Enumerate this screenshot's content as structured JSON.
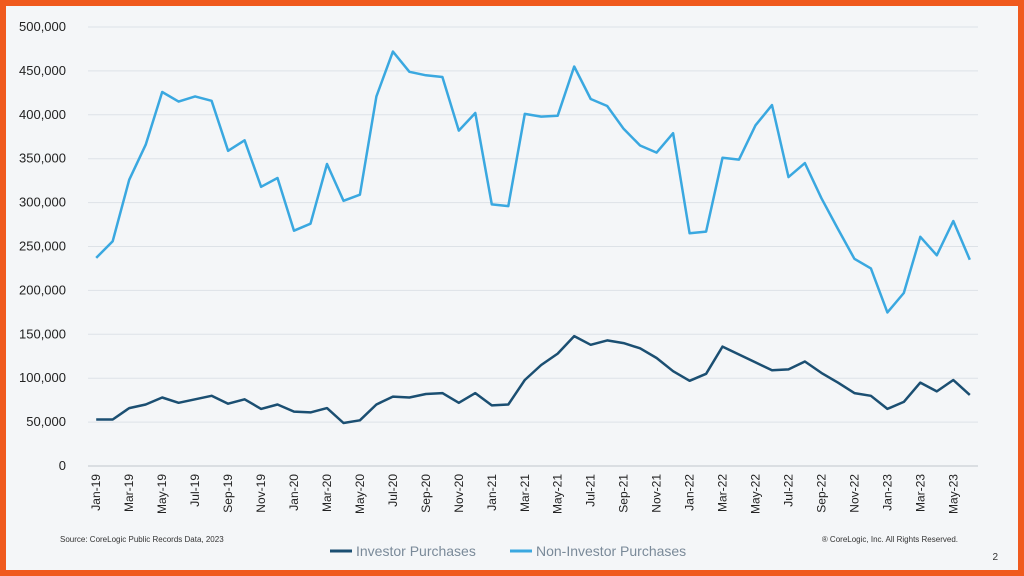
{
  "chart_data": {
    "type": "line",
    "title": "",
    "xlabel": "",
    "ylabel": "",
    "ylim": [
      0,
      500000
    ],
    "y_ticks": [
      "0",
      "50,000",
      "100,000",
      "150,000",
      "200,000",
      "250,000",
      "300,000",
      "350,000",
      "400,000",
      "450,000",
      "500,000"
    ],
    "grid": true,
    "legend_position": "bottom-center",
    "x": [
      "Jan-19",
      "Feb-19",
      "Mar-19",
      "Apr-19",
      "May-19",
      "Jun-19",
      "Jul-19",
      "Aug-19",
      "Sep-19",
      "Oct-19",
      "Nov-19",
      "Dec-19",
      "Jan-20",
      "Feb-20",
      "Mar-20",
      "Apr-20",
      "May-20",
      "Jun-20",
      "Jul-20",
      "Aug-20",
      "Sep-20",
      "Oct-20",
      "Nov-20",
      "Dec-20",
      "Jan-21",
      "Feb-21",
      "Mar-21",
      "Apr-21",
      "May-21",
      "Jun-21",
      "Jul-21",
      "Aug-21",
      "Sep-21",
      "Oct-21",
      "Nov-21",
      "Dec-21",
      "Jan-22",
      "Feb-22",
      "Mar-22",
      "Apr-22",
      "May-22",
      "Jun-22",
      "Jul-22",
      "Aug-22",
      "Sep-22",
      "Oct-22",
      "Nov-22",
      "Dec-22",
      "Jan-23",
      "Feb-23",
      "Mar-23",
      "Apr-23",
      "May-23",
      "Jun-23"
    ],
    "series": [
      {
        "name": "Investor Purchases",
        "color": "#1b4f72",
        "values": [
          53000,
          53000,
          66000,
          70000,
          78000,
          72000,
          76000,
          80000,
          71000,
          76000,
          65000,
          70000,
          62000,
          61000,
          66000,
          49000,
          52000,
          70000,
          79000,
          78000,
          82000,
          83000,
          72000,
          83000,
          69000,
          70000,
          98000,
          115000,
          128000,
          148000,
          138000,
          143000,
          140000,
          134000,
          123000,
          108000,
          97000,
          105000,
          136000,
          127000,
          118000,
          109000,
          110000,
          119000,
          106000,
          95000,
          83000,
          80000,
          65000,
          73000,
          95000,
          85000,
          98000,
          81000
        ]
      },
      {
        "name": "Non-Investor Purchases",
        "color": "#3aa8e0",
        "values": [
          237000,
          256000,
          326000,
          366000,
          426000,
          415000,
          421000,
          416000,
          359000,
          371000,
          318000,
          328000,
          268000,
          276000,
          344000,
          302000,
          309000,
          421000,
          472000,
          449000,
          445000,
          443000,
          382000,
          402000,
          298000,
          296000,
          401000,
          398000,
          399000,
          455000,
          418000,
          410000,
          384000,
          365000,
          357000,
          379000,
          265000,
          267000,
          351000,
          349000,
          388000,
          411000,
          329000,
          345000,
          305000,
          270000,
          236000,
          225000,
          175000,
          197000,
          261000,
          240000,
          279000,
          235000
        ]
      }
    ]
  },
  "footer": {
    "source": "Source: CoreLogic Public Records Data, 2023",
    "copyright": "® CoreLogic, Inc. All Rights Reserved.",
    "page_number": "2"
  },
  "colors": {
    "border": "#f05a1e",
    "background": "#f4f6f8"
  }
}
